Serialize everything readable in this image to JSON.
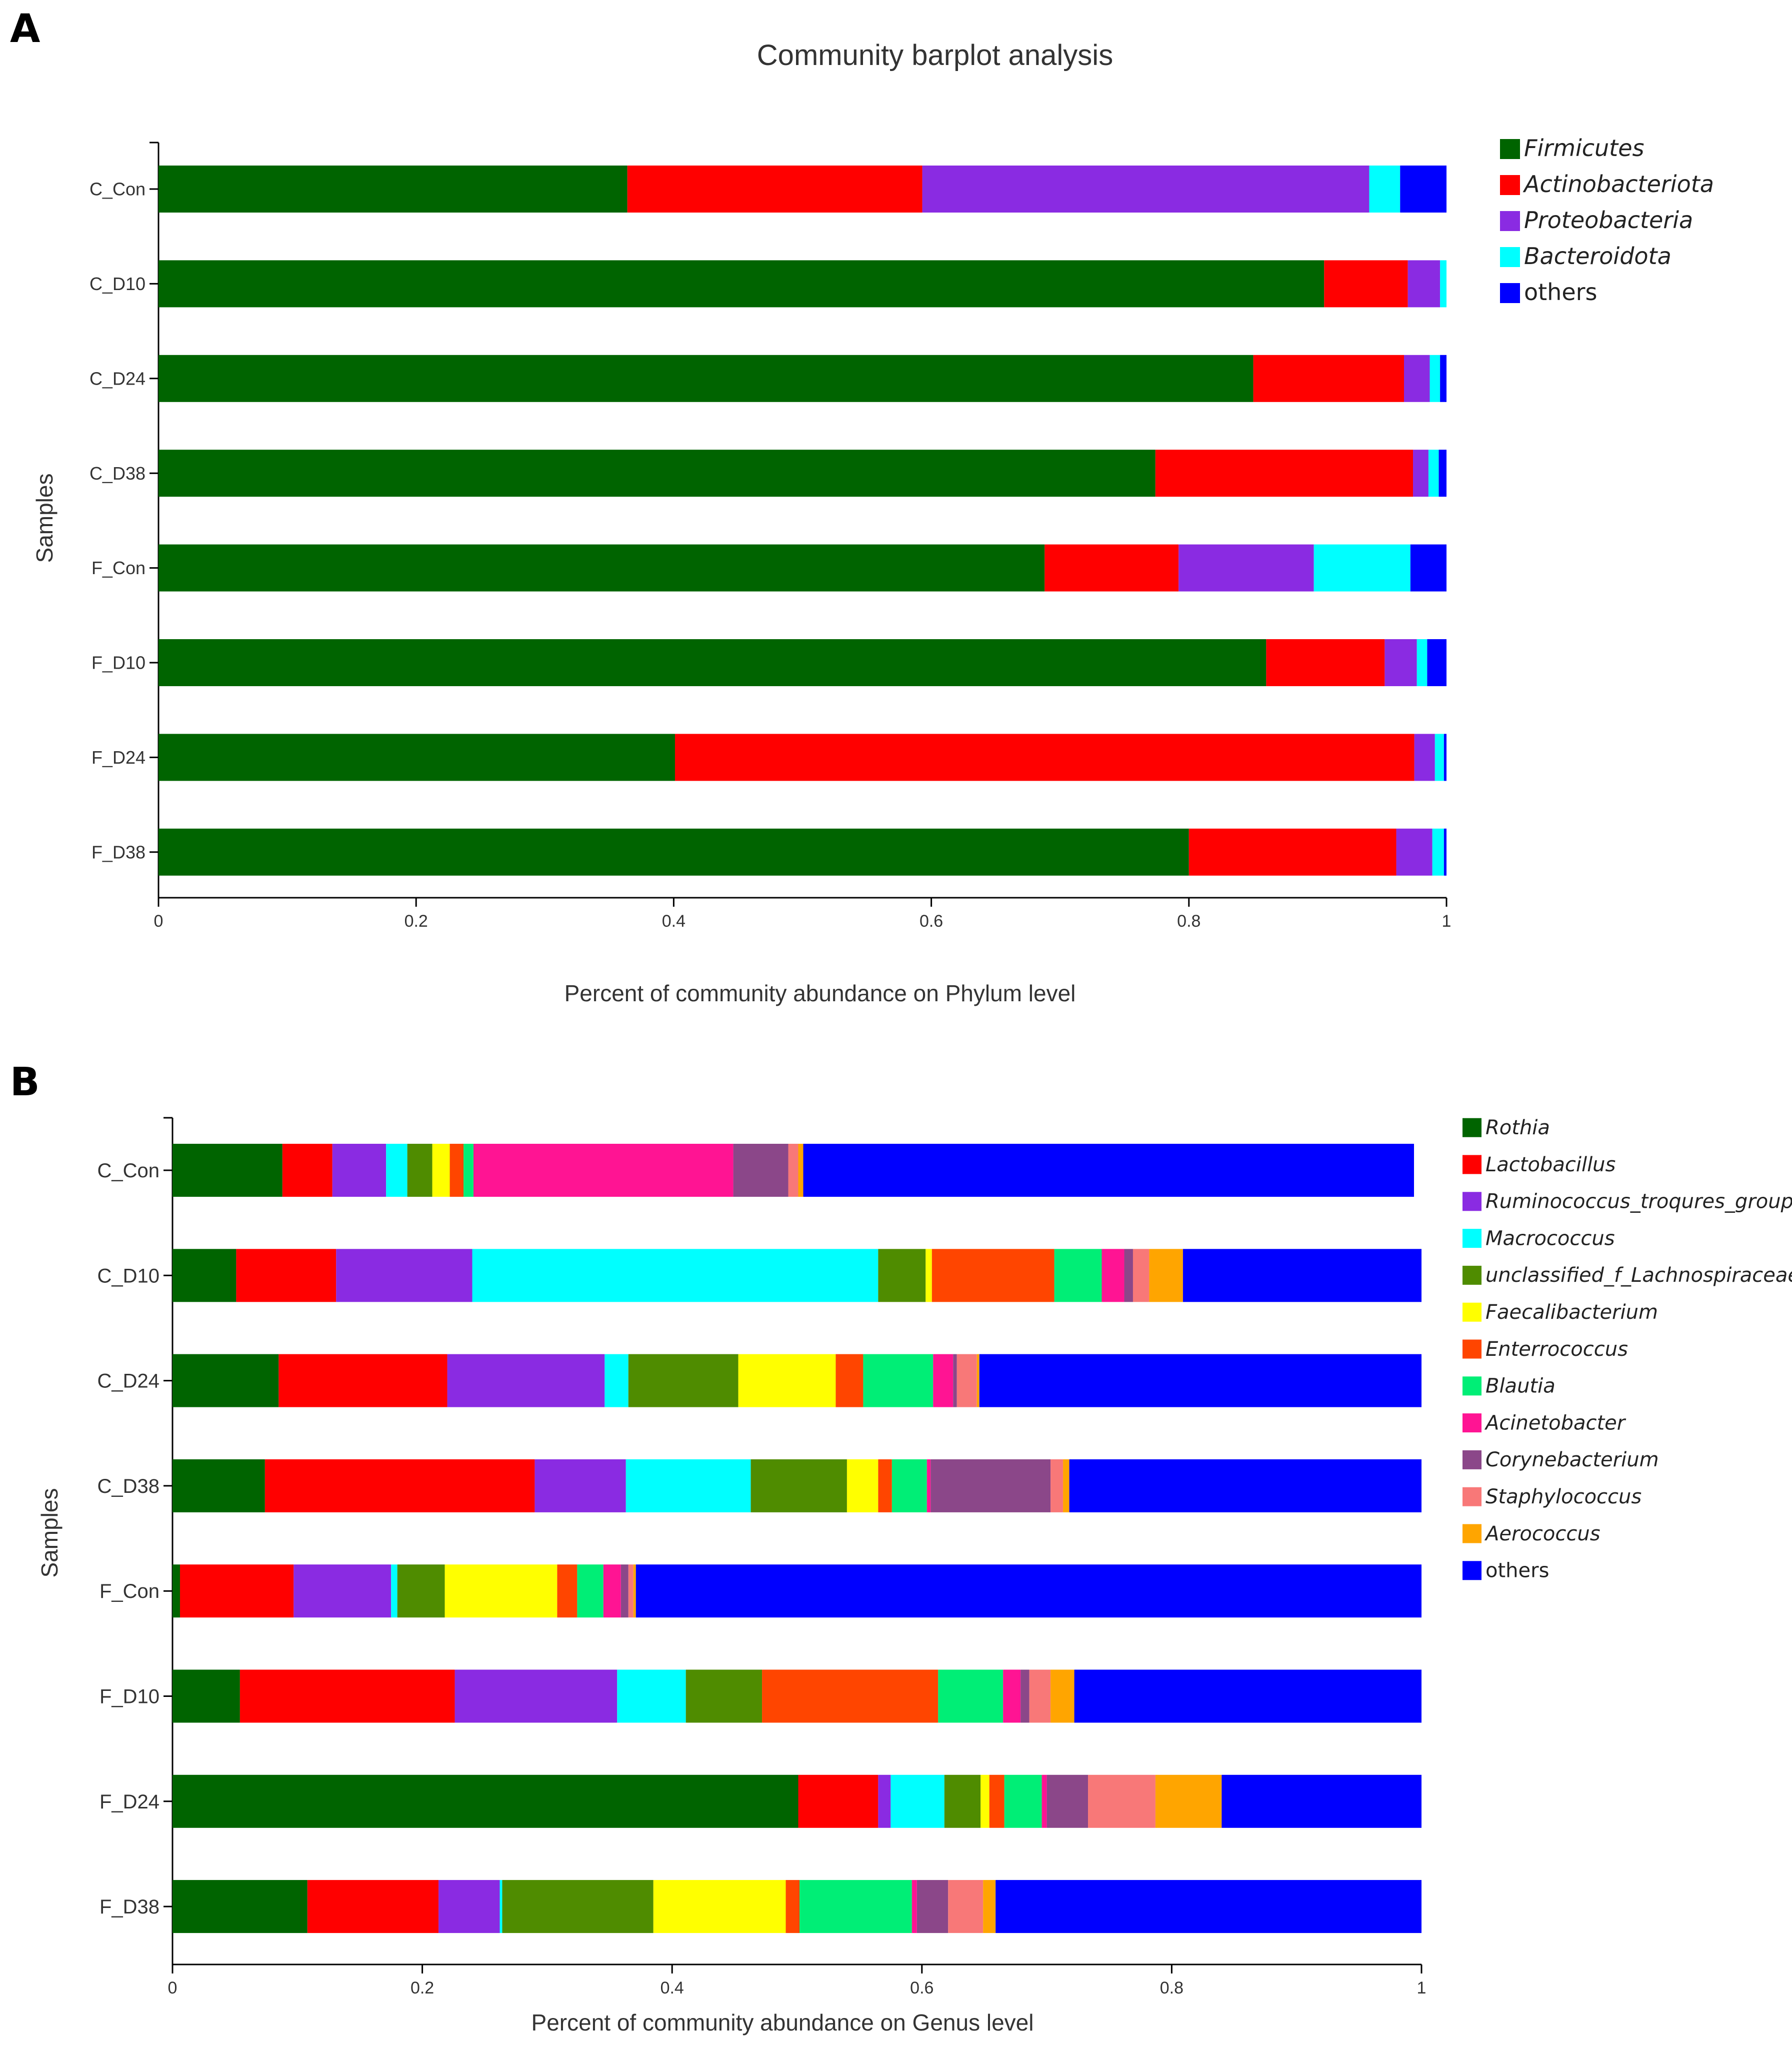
{
  "chart_data": [
    {
      "type": "bar",
      "orientation": "horizontal",
      "stacked": true,
      "panel_label": "A",
      "title": "Community barplot analysis",
      "xlabel": "Percent of community abundance on Phylum level",
      "ylabel": "Samples",
      "xlim": [
        0,
        1
      ],
      "xticks": [
        "0",
        "0.2",
        "0.4",
        "0.6",
        "0.8",
        "1"
      ],
      "grid": false,
      "legend_position": "top-right",
      "categories": [
        "C_Con",
        "C_D10",
        "C_D24",
        "C_D38",
        "F_Con",
        "F_D10",
        "F_D24",
        "F_D38"
      ],
      "series": [
        {
          "name": "Firmicutes",
          "italic": true,
          "color": "#006400",
          "values": [
            0.364,
            0.905,
            0.85,
            0.774,
            0.688,
            0.86,
            0.401,
            0.8
          ]
        },
        {
          "name": "Actinobacteriota",
          "italic": true,
          "color": "#FF0000",
          "values": [
            0.229,
            0.065,
            0.117,
            0.2,
            0.104,
            0.092,
            0.574,
            0.161
          ]
        },
        {
          "name": "Proteobacteria",
          "italic": true,
          "color": "#8A2BE2",
          "values": [
            0.347,
            0.025,
            0.02,
            0.012,
            0.105,
            0.025,
            0.016,
            0.028
          ]
        },
        {
          "name": "Bacteroidota",
          "italic": true,
          "color": "#00FFFF",
          "values": [
            0.024,
            0.005,
            0.008,
            0.008,
            0.075,
            0.008,
            0.007,
            0.009
          ]
        },
        {
          "name": "others",
          "italic": false,
          "color": "#0000FF",
          "values": [
            0.036,
            0.0,
            0.005,
            0.006,
            0.028,
            0.015,
            0.002,
            0.002
          ]
        }
      ]
    },
    {
      "type": "bar",
      "orientation": "horizontal",
      "stacked": true,
      "panel_label": "B",
      "title": "",
      "xlabel": "Percent of community abundance on Genus level",
      "ylabel": "Samples",
      "xlim": [
        0,
        1
      ],
      "xticks": [
        "0",
        "0.2",
        "0.4",
        "0.6",
        "0.8",
        "1"
      ],
      "grid": false,
      "legend_position": "top-right",
      "categories": [
        "C_Con",
        "C_D10",
        "C_D24",
        "C_D38",
        "F_Con",
        "F_D10",
        "F_D24",
        "F_D38"
      ],
      "series": [
        {
          "name": "Rothia",
          "italic": true,
          "color": "#006400",
          "values": [
            0.088,
            0.051,
            0.085,
            0.074,
            0.006,
            0.054,
            0.501,
            0.108
          ]
        },
        {
          "name": "Lactobacillus",
          "italic": true,
          "color": "#FF0000",
          "values": [
            0.04,
            0.08,
            0.135,
            0.216,
            0.091,
            0.172,
            0.064,
            0.105
          ]
        },
        {
          "name": "Ruminococcus_troqures_group",
          "italic": true,
          "color": "#8A2BE2",
          "values": [
            0.043,
            0.109,
            0.126,
            0.073,
            0.078,
            0.13,
            0.01,
            0.049
          ]
        },
        {
          "name": "Macrococcus",
          "italic": true,
          "color": "#00FFFF",
          "values": [
            0.017,
            0.325,
            0.019,
            0.1,
            0.005,
            0.055,
            0.043,
            0.002
          ]
        },
        {
          "name": "unclassified_f_Lachnospiraceae",
          "italic": true,
          "color": "#4F8C00",
          "values": [
            0.02,
            0.038,
            0.088,
            0.077,
            0.038,
            0.061,
            0.029,
            0.121
          ]
        },
        {
          "name": "Faecalibacterium",
          "italic": true,
          "color": "#FFFF00",
          "values": [
            0.014,
            0.005,
            0.078,
            0.025,
            0.09,
            0.0,
            0.007,
            0.106
          ]
        },
        {
          "name": "Enterrococcus",
          "italic": true,
          "color": "#FF4500",
          "values": [
            0.011,
            0.098,
            0.022,
            0.011,
            0.016,
            0.141,
            0.012,
            0.011
          ]
        },
        {
          "name": "Blautia",
          "italic": true,
          "color": "#00EE76",
          "values": [
            0.008,
            0.038,
            0.056,
            0.028,
            0.021,
            0.052,
            0.03,
            0.09
          ]
        },
        {
          "name": "Acinetobacter",
          "italic": true,
          "color": "#FF1493",
          "values": [
            0.208,
            0.018,
            0.016,
            0.003,
            0.014,
            0.014,
            0.004,
            0.004
          ]
        },
        {
          "name": "Corynebacterium",
          "italic": true,
          "color": "#8B4789",
          "values": [
            0.044,
            0.007,
            0.003,
            0.096,
            0.006,
            0.007,
            0.033,
            0.025
          ]
        },
        {
          "name": "Staphylococcus",
          "italic": true,
          "color": "#F87878",
          "values": [
            0.008,
            0.013,
            0.016,
            0.01,
            0.004,
            0.017,
            0.054,
            0.028
          ]
        },
        {
          "name": "Aerococcus",
          "italic": true,
          "color": "#FFA500",
          "values": [
            0.004,
            0.027,
            0.002,
            0.005,
            0.002,
            0.019,
            0.053,
            0.01
          ]
        },
        {
          "name": "others",
          "italic": false,
          "color": "#0000FF",
          "values": [
            0.489,
            0.191,
            0.354,
            0.282,
            0.629,
            0.278,
            0.16,
            0.341
          ]
        }
      ]
    }
  ]
}
